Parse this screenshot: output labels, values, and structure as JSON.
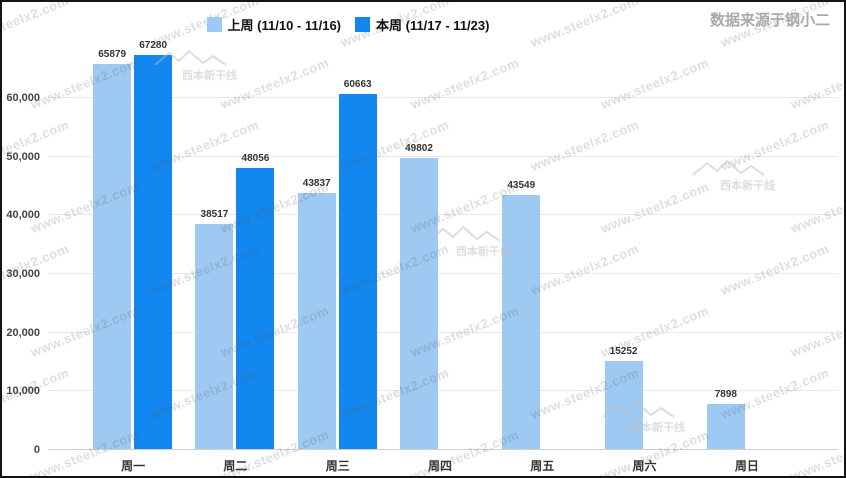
{
  "source_label": "数据来源于钢小二",
  "watermark": {
    "text": "www.steelx2.com",
    "logo_text": "西本新干线"
  },
  "legend": [
    {
      "label": "上周 (11/10 - 11/16)",
      "color": "#9ec9f2"
    },
    {
      "label": "本周 (11/17 - 11/23)",
      "color": "#1287f0"
    }
  ],
  "chart_data": {
    "type": "bar",
    "title": "",
    "xlabel": "",
    "ylabel": "",
    "categories": [
      "周一",
      "周二",
      "周三",
      "周四",
      "周五",
      "周六",
      "周日"
    ],
    "series": [
      {
        "name": "上周 (11/10 - 11/16)",
        "color": "#9ec9f2",
        "values": [
          65879,
          38517,
          43837,
          49802,
          43549,
          15252,
          7898
        ]
      },
      {
        "name": "本周 (11/17 - 11/23)",
        "color": "#1287f0",
        "values": [
          67280,
          48056,
          60663,
          null,
          null,
          null,
          null
        ]
      }
    ],
    "ylim": [
      0,
      68000
    ],
    "yticks": [
      0,
      10000,
      20000,
      30000,
      40000,
      50000,
      60000
    ],
    "ytick_labels": [
      "0",
      "10,000",
      "20,000",
      "30,000",
      "40,000",
      "50,000",
      "60,000"
    ],
    "grid": true,
    "legend_position": "top-center",
    "value_labels": true
  }
}
